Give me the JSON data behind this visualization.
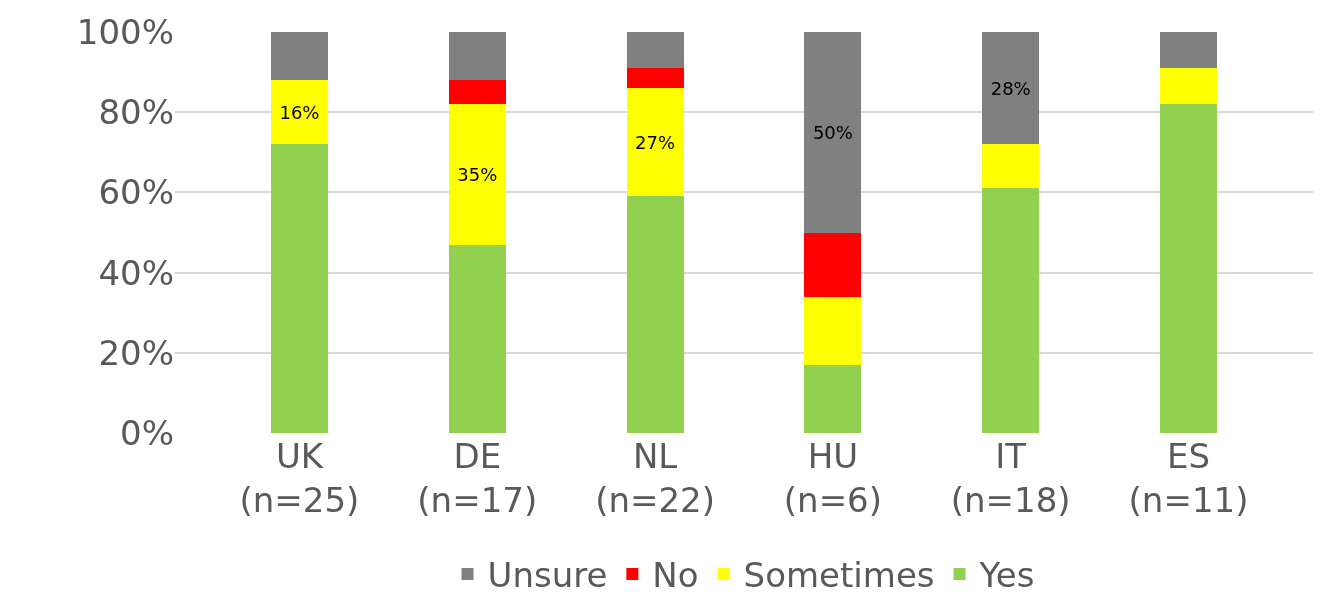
{
  "chart_data": {
    "type": "bar",
    "stacked": true,
    "categories": [
      "UK\n(n=25)",
      "DE\n(n=17)",
      "NL\n(n=22)",
      "HU\n(n=6)",
      "IT\n(n=18)",
      "ES\n(n=11)"
    ],
    "series": [
      {
        "name": "Yes",
        "color": "#92d050",
        "values": [
          72,
          47,
          59,
          17,
          61,
          82
        ]
      },
      {
        "name": "Sometimes",
        "color": "#ffff00",
        "values": [
          16,
          35,
          27,
          17,
          11,
          9
        ],
        "value_labels": [
          "16%",
          "35%",
          "27%",
          null,
          null,
          null
        ]
      },
      {
        "name": "No",
        "color": "#ff0000",
        "values": [
          0,
          6,
          5,
          16,
          0,
          0
        ]
      },
      {
        "name": "Unsure",
        "color": "#808080",
        "values": [
          12,
          12,
          9,
          50,
          28,
          9
        ],
        "value_labels": [
          null,
          null,
          null,
          "50%",
          "28%",
          null
        ]
      }
    ],
    "ylim": [
      0,
      100
    ],
    "yticks": [
      {
        "value": 0,
        "label": "0%"
      },
      {
        "value": 20,
        "label": "20%"
      },
      {
        "value": 40,
        "label": "40%"
      },
      {
        "value": 60,
        "label": "60%"
      },
      {
        "value": 80,
        "label": "80%"
      },
      {
        "value": 100,
        "label": "100%"
      }
    ],
    "grid": "y",
    "legend": "bottom"
  }
}
